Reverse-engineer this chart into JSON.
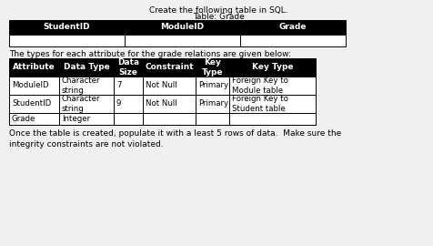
{
  "title_line1": "Create the following table in SQL.",
  "title_line2": "Table: Grade",
  "table1_headers": [
    "StudentID",
    "ModuleID",
    "Grade"
  ],
  "middle_text": "The types for each attribute for the grade relations are given below:",
  "table2_headers": [
    "Attribute",
    "Data Type",
    "Data\nSize",
    "Constraint",
    "Key\nType",
    "Key Type"
  ],
  "table2_rows": [
    [
      "ModuleID",
      "Character\nstring",
      "7",
      "Not Null",
      "Primary",
      "Foreign Key to\nModule table"
    ],
    [
      "StudentID",
      "Character\nstring",
      "9",
      "Not Null",
      "Primary",
      "Foreign Key to\nStudent table"
    ],
    [
      "Grade",
      "Integer",
      "",
      "",
      "",
      ""
    ]
  ],
  "footer_text": "Once the table is created, populate it with a least 5 rows of data.  Make sure the\nintegrity constraints are not violated.",
  "header_bg": "#000000",
  "header_fg": "#ffffff",
  "border_color": "#000000",
  "bg_color": "#f0f0f0",
  "fontsize": 6.5
}
